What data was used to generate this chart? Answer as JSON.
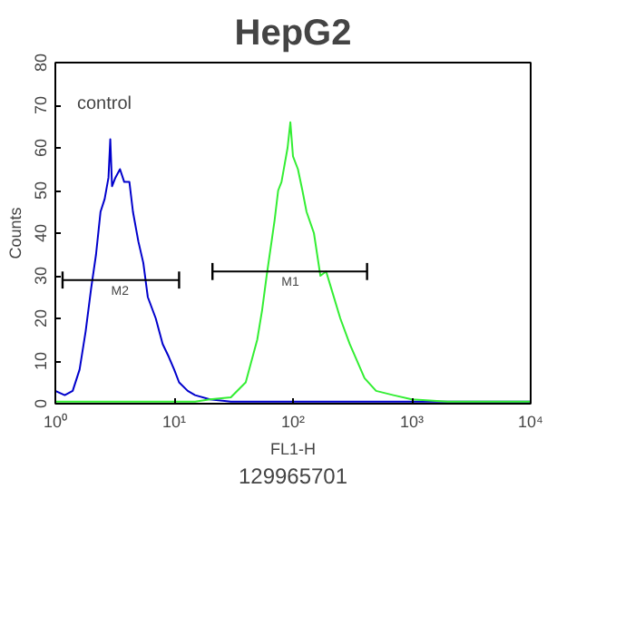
{
  "chart_data": {
    "type": "line",
    "title": "HepG2",
    "xlabel": "FL1-H",
    "ylabel": "Counts",
    "log": "x",
    "xlim": [
      1,
      10000
    ],
    "ylim": [
      0,
      80
    ],
    "xticks": [
      {
        "value": 1,
        "label": "10⁰"
      },
      {
        "value": 10,
        "label": "10¹"
      },
      {
        "value": 100,
        "label": "10²"
      },
      {
        "value": 1000,
        "label": "10³"
      },
      {
        "value": 10000,
        "label": "10⁴"
      }
    ],
    "yticks": [
      0,
      10,
      20,
      30,
      40,
      50,
      60,
      70,
      80
    ],
    "grid": false,
    "series": [
      {
        "color": "#0000cc",
        "x": [
          1.0,
          1.2,
          1.4,
          1.6,
          1.8,
          2.0,
          2.2,
          2.4,
          2.6,
          2.8,
          2.9,
          3.0,
          3.2,
          3.5,
          3.8,
          4.2,
          4.5,
          5.0,
          5.5,
          6.0,
          7,
          8,
          9,
          10,
          11,
          13,
          15,
          20,
          30,
          50,
          100,
          10000
        ],
        "values": [
          3,
          2,
          3,
          8,
          17,
          27,
          35,
          45,
          48,
          53,
          62,
          51,
          53,
          55,
          52,
          52,
          45,
          38,
          33,
          25,
          20,
          14,
          11,
          8,
          5,
          3,
          2,
          1,
          0.5,
          0.5,
          0.5,
          0.5
        ]
      },
      {
        "color": "#33ee33",
        "x": [
          1,
          15,
          20,
          30,
          40,
          50,
          55,
          60,
          70,
          75,
          80,
          90,
          95,
          100,
          110,
          120,
          130,
          150,
          170,
          190,
          210,
          250,
          300,
          400,
          500,
          700,
          1000,
          2000,
          10000
        ],
        "values": [
          0.5,
          0.5,
          1,
          1.5,
          5,
          15,
          22,
          30,
          43,
          50,
          52,
          60,
          66,
          58,
          55,
          50,
          45,
          40,
          30,
          31,
          27,
          20,
          14,
          6,
          3,
          2,
          1,
          0.5,
          0.5
        ]
      },
      {
        "color": "#000000",
        "x": [
          1.15,
          11
        ],
        "values": [
          29,
          29
        ],
        "errors": [
          2,
          2
        ]
      },
      {
        "color": "#000000",
        "x": [
          21,
          420
        ],
        "values": [
          31,
          31
        ],
        "errors": [
          2,
          2
        ]
      }
    ],
    "annotations": [
      "control",
      {
        "text": "M2",
        "x": 3.5,
        "y": 29
      },
      {
        "text": "M1",
        "x": 95,
        "y": 31
      },
      "129965701"
    ]
  }
}
